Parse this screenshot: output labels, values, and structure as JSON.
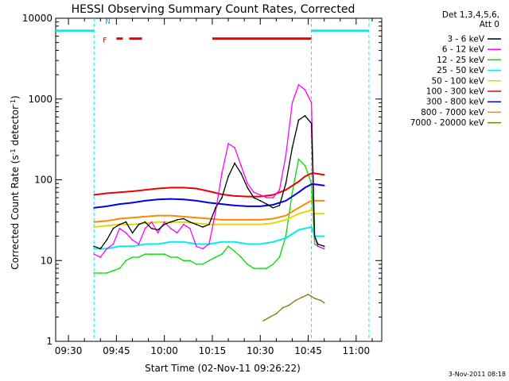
{
  "chart_data": {
    "type": "line",
    "title": "HESSI Observing Summary Count Rates, Corrected",
    "xlabel": "Start Time (02-Nov-11 09:26:22)",
    "ylabel_main": "Corrected Count Rate (s",
    "ylabel_sup1": "-1",
    "ylabel_mid": " detector",
    "ylabel_sup2": "-1",
    "ylabel_end": ")",
    "y_scale": "log",
    "ylim": [
      1,
      10000
    ],
    "xlim": [
      "09:26",
      "11:08"
    ],
    "x_ticks": [
      "09:30",
      "09:45",
      "10:00",
      "10:15",
      "10:30",
      "10:45",
      "11:00"
    ],
    "y_ticks": [
      "1",
      "10",
      "100",
      "1000",
      "10000"
    ],
    "legend_header": [
      "Det 1,3,4,5,6,",
      "Att 0"
    ],
    "legend_position": "right",
    "timestamp": "3-Nov-2011 08:18",
    "flag_labels": {
      "night": "N",
      "flare": "F"
    },
    "series": [
      {
        "name": "3 - 6 keV",
        "color": "#000000",
        "x": [
          "09:38",
          "09:40",
          "09:42",
          "09:44",
          "09:46",
          "09:48",
          "09:50",
          "09:52",
          "09:54",
          "09:56",
          "09:58",
          "10:00",
          "10:02",
          "10:04",
          "10:06",
          "10:08",
          "10:10",
          "10:12",
          "10:14",
          "10:16",
          "10:18",
          "10:20",
          "10:22",
          "10:24",
          "10:26",
          "10:28",
          "10:30",
          "10:32",
          "10:34",
          "10:36",
          "10:38",
          "10:40",
          "10:42",
          "10:44",
          "10:46",
          "10:47",
          "10:48",
          "10:50"
        ],
        "values": [
          15,
          14,
          18,
          25,
          28,
          30,
          22,
          28,
          30,
          25,
          24,
          28,
          30,
          32,
          33,
          30,
          28,
          26,
          28,
          45,
          60,
          110,
          160,
          120,
          80,
          60,
          55,
          50,
          45,
          48,
          90,
          250,
          550,
          620,
          500,
          20,
          16,
          15
        ]
      },
      {
        "name": "6 - 12 keV",
        "color": "#ff00ff",
        "x": [
          "09:38",
          "09:40",
          "09:42",
          "09:44",
          "09:46",
          "09:48",
          "09:50",
          "09:52",
          "09:54",
          "09:56",
          "09:58",
          "10:00",
          "10:02",
          "10:04",
          "10:06",
          "10:08",
          "10:10",
          "10:12",
          "10:14",
          "10:16",
          "10:18",
          "10:20",
          "10:22",
          "10:24",
          "10:26",
          "10:28",
          "10:30",
          "10:32",
          "10:34",
          "10:36",
          "10:38",
          "10:40",
          "10:42",
          "10:44",
          "10:46",
          "10:47",
          "10:48",
          "10:50"
        ],
        "values": [
          12,
          11,
          14,
          16,
          25,
          22,
          18,
          16,
          25,
          30,
          22,
          30,
          25,
          22,
          28,
          25,
          15,
          14,
          16,
          40,
          120,
          280,
          250,
          150,
          90,
          70,
          65,
          60,
          60,
          75,
          200,
          900,
          1500,
          1300,
          900,
          20,
          15,
          14
        ]
      },
      {
        "name": "12 - 25 keV",
        "color": "#00dd00",
        "x": [
          "09:38",
          "09:40",
          "09:42",
          "09:44",
          "09:46",
          "09:48",
          "09:50",
          "09:52",
          "09:54",
          "09:56",
          "09:58",
          "10:00",
          "10:02",
          "10:04",
          "10:06",
          "10:08",
          "10:10",
          "10:12",
          "10:14",
          "10:16",
          "10:18",
          "10:20",
          "10:22",
          "10:24",
          "10:26",
          "10:28",
          "10:30",
          "10:32",
          "10:34",
          "10:36",
          "10:38",
          "10:40",
          "10:42",
          "10:44",
          "10:46",
          "10:47",
          "10:48",
          "10:50"
        ],
        "values": [
          7,
          7,
          7,
          7.5,
          8,
          10,
          11,
          11,
          12,
          12,
          12,
          12,
          11,
          11,
          10,
          10,
          9,
          9,
          10,
          11,
          12,
          15,
          13,
          11,
          9,
          8,
          8,
          8,
          9,
          11,
          20,
          70,
          180,
          150,
          90,
          16,
          15,
          14
        ]
      },
      {
        "name": "25 - 50 keV",
        "color": "#00eeee",
        "x": [
          "09:38",
          "09:42",
          "09:46",
          "09:50",
          "09:54",
          "09:58",
          "10:02",
          "10:06",
          "10:10",
          "10:14",
          "10:18",
          "10:22",
          "10:26",
          "10:30",
          "10:34",
          "10:38",
          "10:42",
          "10:44",
          "10:46",
          "10:47",
          "10:50"
        ],
        "values": [
          14,
          14,
          15,
          15,
          16,
          16,
          17,
          17,
          16,
          16,
          17,
          17,
          16,
          16,
          17,
          19,
          24,
          25,
          26,
          20,
          20
        ]
      },
      {
        "name": "50 - 100 keV",
        "color": "#dddd00",
        "x": [
          "09:38",
          "09:42",
          "09:46",
          "09:50",
          "09:54",
          "09:58",
          "10:02",
          "10:06",
          "10:10",
          "10:14",
          "10:18",
          "10:22",
          "10:26",
          "10:30",
          "10:34",
          "10:38",
          "10:42",
          "10:44",
          "10:46",
          "10:47",
          "10:50"
        ],
        "values": [
          26,
          27,
          28,
          28,
          29,
          30,
          30,
          30,
          29,
          28,
          28,
          28,
          28,
          28,
          29,
          32,
          38,
          40,
          42,
          38,
          38
        ]
      },
      {
        "name": "100 - 300 keV",
        "color": "#ee0000",
        "x": [
          "09:38",
          "09:42",
          "09:46",
          "09:50",
          "09:54",
          "09:58",
          "10:02",
          "10:06",
          "10:10",
          "10:14",
          "10:18",
          "10:22",
          "10:26",
          "10:30",
          "10:34",
          "10:38",
          "10:42",
          "10:44",
          "10:46",
          "10:47",
          "10:50"
        ],
        "values": [
          65,
          68,
          70,
          72,
          75,
          78,
          80,
          80,
          78,
          72,
          66,
          63,
          62,
          62,
          65,
          75,
          95,
          110,
          120,
          120,
          115
        ]
      },
      {
        "name": "300 - 800 keV",
        "color": "#0000ee",
        "x": [
          "09:38",
          "09:42",
          "09:46",
          "09:50",
          "09:54",
          "09:58",
          "10:02",
          "10:06",
          "10:10",
          "10:14",
          "10:18",
          "10:22",
          "10:26",
          "10:30",
          "10:34",
          "10:38",
          "10:42",
          "10:44",
          "10:46",
          "10:47",
          "10:50"
        ],
        "values": [
          45,
          47,
          50,
          52,
          55,
          57,
          58,
          57,
          55,
          52,
          50,
          48,
          47,
          47,
          49,
          55,
          70,
          80,
          88,
          88,
          85
        ]
      },
      {
        "name": "800 - 7000 keV",
        "color": "#ff8800",
        "x": [
          "09:38",
          "09:42",
          "09:46",
          "09:50",
          "09:54",
          "09:58",
          "10:02",
          "10:06",
          "10:10",
          "10:14",
          "10:18",
          "10:22",
          "10:26",
          "10:30",
          "10:34",
          "10:38",
          "10:42",
          "10:44",
          "10:46",
          "10:47",
          "10:50"
        ],
        "values": [
          30,
          31,
          33,
          34,
          35,
          36,
          36,
          35,
          34,
          33,
          32,
          32,
          32,
          32,
          33,
          36,
          45,
          50,
          55,
          55,
          55
        ]
      },
      {
        "name": "7000 - 20000 keV",
        "color": "#887700",
        "x": [
          "10:31",
          "10:33",
          "10:35",
          "10:37",
          "10:39",
          "10:41",
          "10:43",
          "10:45",
          "10:46",
          "10:47",
          "10:49",
          "10:50"
        ],
        "values": [
          1.8,
          2.0,
          2.2,
          2.6,
          2.8,
          3.2,
          3.5,
          3.8,
          3.6,
          3.4,
          3.2,
          3.0
        ]
      }
    ],
    "night_intervals": [
      [
        "09:26",
        "09:38"
      ],
      [
        "10:46",
        "11:04"
      ]
    ],
    "night_markers": [
      "09:38",
      "10:46",
      "11:04"
    ],
    "flare_intervals": [
      [
        "09:45",
        "09:47"
      ],
      [
        "09:49",
        "09:53"
      ],
      [
        "10:15",
        "10:46"
      ]
    ],
    "grid": false
  }
}
